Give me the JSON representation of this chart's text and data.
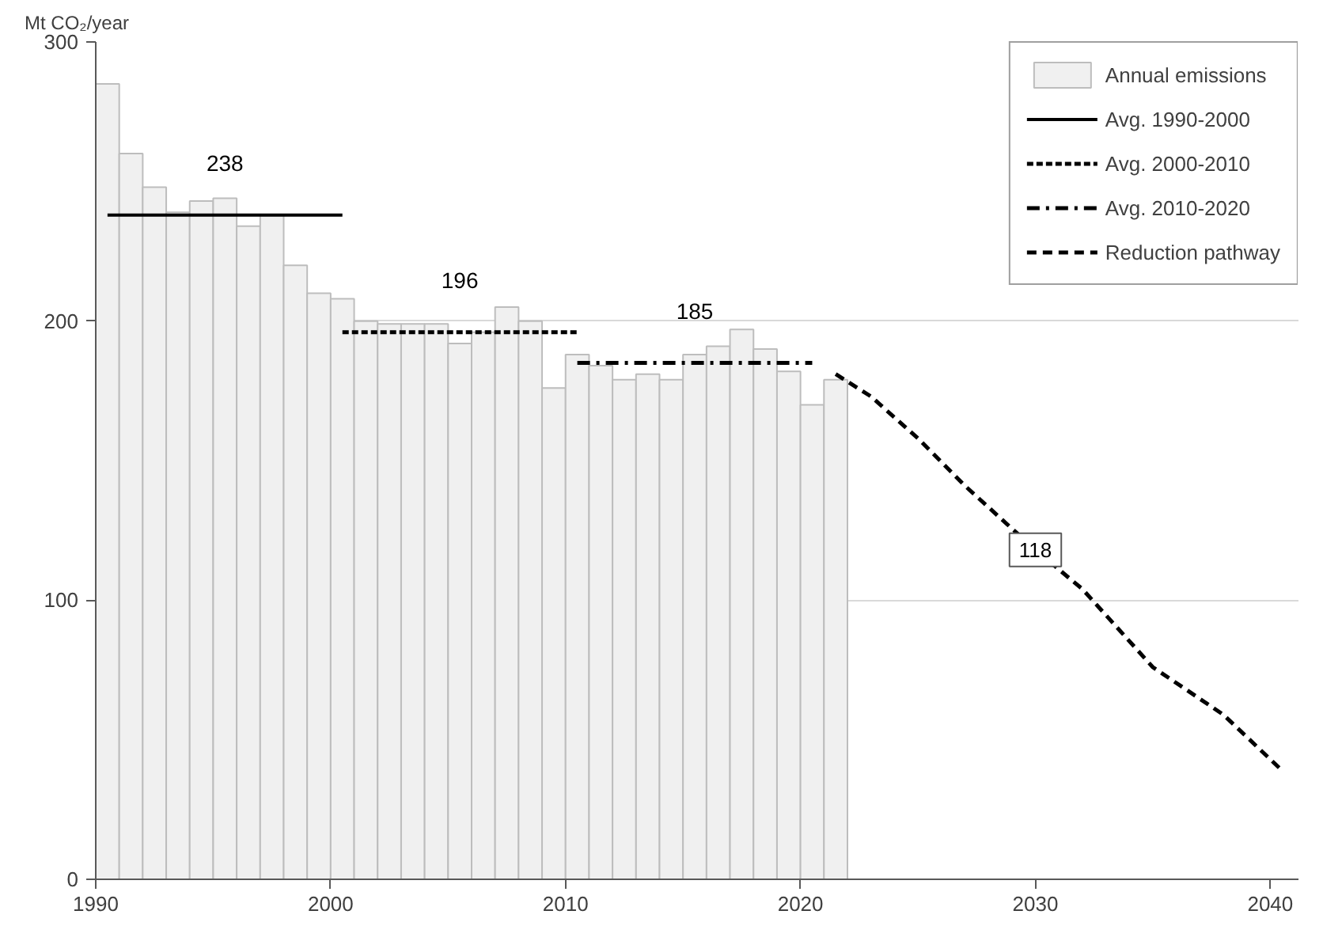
{
  "chart_data": {
    "type": "bar",
    "ylabel": "Mt CO₂/year",
    "x": [
      1990.5,
      1991.5,
      1992.5,
      1993.5,
      1994.5,
      1995.5,
      1996.5,
      1997.5,
      1998.5,
      1999.5,
      2000.5,
      2001.5,
      2002.5,
      2003.5,
      2004.5,
      2005.5,
      2006.5,
      2007.5,
      2008.5,
      2009.5,
      2010.5,
      2011.5,
      2012.5,
      2013.5,
      2014.5,
      2015.5,
      2016.5,
      2017.5,
      2018.5,
      2019.5,
      2020.5,
      2021.5
    ],
    "series": [
      {
        "name": "Annual emissions",
        "color": "#f0f0f0",
        "values": [
          285,
          260,
          248,
          239,
          243,
          244,
          234,
          238,
          220,
          210,
          208,
          200,
          199,
          199,
          199,
          192,
          196,
          205,
          200,
          176,
          188,
          184,
          179,
          181,
          179,
          188,
          191,
          197,
          190,
          182,
          170,
          179
        ]
      },
      {
        "name": "Avg. 1990-2000",
        "type": "line",
        "line_style": "solid",
        "color": "#000000",
        "x": [
          1990.5,
          2000.5
        ],
        "values": [
          238,
          238
        ]
      },
      {
        "name": "Avg. 2000-2010",
        "type": "line",
        "line_style": "dotted",
        "color": "#000000",
        "x": [
          2000.5,
          2010.5
        ],
        "values": [
          196,
          196
        ]
      },
      {
        "name": "Avg. 2010-2020",
        "type": "line",
        "line_style": "dashdot",
        "color": "#000000",
        "x": [
          2010.5,
          2020.5
        ],
        "values": [
          185,
          185
        ]
      },
      {
        "name": "Reduction pathway",
        "type": "line",
        "line_style": "dashed",
        "color": "#000000",
        "x": [
          2021.5,
          2023,
          2025,
          2027,
          2030,
          2032,
          2035,
          2038,
          2040.5
        ],
        "values": [
          181,
          173,
          158,
          141,
          118,
          104,
          76,
          59,
          39
        ],
        "value_labels": [
          null,
          null,
          null,
          null,
          "118",
          null,
          null,
          null,
          null
        ]
      }
    ],
    "annotations": [
      {
        "text": "238",
        "x": 1995.5,
        "y": 238
      },
      {
        "text": "196",
        "x": 2005.5,
        "y": 196
      },
      {
        "text": "185",
        "x": 2015.5,
        "y": 185
      }
    ],
    "xlim": [
      1990,
      2041.2
    ],
    "xticks": [
      1990,
      2000,
      2010,
      2020,
      2030,
      2040
    ],
    "ylim": [
      0,
      300
    ],
    "yticks": [
      0,
      100,
      200,
      300
    ],
    "grid": "y",
    "legend": "top right"
  }
}
